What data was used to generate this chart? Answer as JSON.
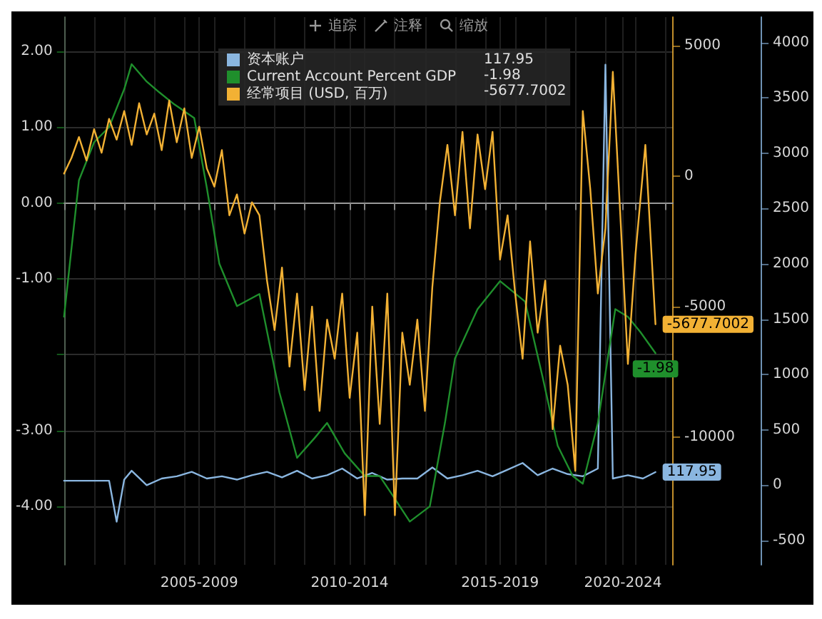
{
  "chart_data": {
    "type": "line",
    "annotations": [
      "追踪",
      "注释",
      "缩放"
    ],
    "series": [
      {
        "name": "资本账户",
        "color": "#8ab6e0",
        "axis": "y3",
        "x": [
          "2003-01",
          "2003-07",
          "2004-01",
          "2004-07",
          "2004-10",
          "2005-01",
          "2005-04",
          "2005-10",
          "2006-04",
          "2006-10",
          "2007-04",
          "2007-10",
          "2008-04",
          "2008-10",
          "2009-04",
          "2009-10",
          "2010-04",
          "2010-10",
          "2011-04",
          "2011-10",
          "2012-04",
          "2012-10",
          "2013-04",
          "2013-10",
          "2014-04",
          "2014-10",
          "2015-04",
          "2015-10",
          "2016-04",
          "2016-10",
          "2017-04",
          "2017-10",
          "2018-04",
          "2018-10",
          "2019-04",
          "2019-10",
          "2020-04",
          "2020-10",
          "2021-01",
          "2021-04",
          "2021-10",
          "2022-04",
          "2022-09"
        ],
        "values": [
          40,
          40,
          40,
          40,
          -330,
          50,
          130,
          0,
          60,
          80,
          120,
          60,
          80,
          50,
          90,
          120,
          70,
          130,
          60,
          90,
          150,
          60,
          110,
          50,
          60,
          60,
          160,
          60,
          90,
          130,
          80,
          140,
          200,
          90,
          150,
          100,
          80,
          150,
          3800,
          60,
          90,
          60,
          117.95
        ],
        "value_labels": [
          null,
          null,
          null,
          null,
          null,
          null,
          null,
          null,
          null,
          null,
          null,
          null,
          null,
          null,
          null,
          null,
          null,
          null,
          null,
          null,
          null,
          null,
          null,
          null,
          null,
          null,
          null,
          null,
          null,
          null,
          null,
          null,
          null,
          null,
          null,
          null,
          null,
          null,
          null,
          null,
          null,
          null,
          "117.95"
        ]
      },
      {
        "name": "Current Account Percent GDP",
        "color": "#1f8f2c",
        "axis": "y",
        "x": [
          "2003-01",
          "2003-07",
          "2004-01",
          "2004-07",
          "2005-01",
          "2005-04",
          "2005-10",
          "2006-03",
          "2006-09",
          "2007-01",
          "2007-05",
          "2007-10",
          "2008-03",
          "2008-10",
          "2009-07",
          "2010-03",
          "2010-10",
          "2011-05",
          "2011-10",
          "2012-05",
          "2013-01",
          "2013-07",
          "2014-01",
          "2014-07",
          "2015-03",
          "2015-09",
          "2016-01",
          "2016-10",
          "2017-07",
          "2018-05",
          "2018-12",
          "2019-06",
          "2019-12",
          "2020-04",
          "2020-10",
          "2021-05",
          "2021-10",
          "2022-03",
          "2022-09"
        ],
        "values": [
          -1.5,
          0.3,
          0.8,
          1.0,
          1.5,
          1.83,
          1.6,
          1.46,
          1.3,
          1.21,
          1.12,
          0.2,
          -0.8,
          -1.36,
          -1.2,
          -2.5,
          -3.36,
          -3.1,
          -2.9,
          -3.3,
          -3.6,
          -3.6,
          -3.9,
          -4.2,
          -4.0,
          -2.9,
          -2.05,
          -1.4,
          -1.03,
          -1.3,
          -2.3,
          -3.2,
          -3.6,
          -3.7,
          -2.9,
          -1.4,
          -1.5,
          -1.7,
          -1.98
        ],
        "value_labels": [
          null,
          null,
          null,
          null,
          null,
          null,
          null,
          null,
          null,
          null,
          null,
          null,
          null,
          null,
          null,
          null,
          null,
          null,
          null,
          null,
          null,
          null,
          null,
          null,
          null,
          null,
          null,
          null,
          null,
          null,
          null,
          null,
          null,
          null,
          null,
          null,
          null,
          null,
          "-1.98"
        ]
      },
      {
        "name": "经常项目 (USD, 百万)",
        "color": "#f2b134",
        "axis": "y2",
        "x": [
          "2003-01",
          "2003-04",
          "2003-07",
          "2003-10",
          "2004-01",
          "2004-04",
          "2004-07",
          "2004-10",
          "2005-01",
          "2005-04",
          "2005-07",
          "2005-10",
          "2006-01",
          "2006-04",
          "2006-07",
          "2006-10",
          "2007-01",
          "2007-04",
          "2007-07",
          "2007-10",
          "2008-01",
          "2008-04",
          "2008-07",
          "2008-10",
          "2009-01",
          "2009-04",
          "2009-07",
          "2009-10",
          "2010-01",
          "2010-04",
          "2010-07",
          "2010-10",
          "2011-01",
          "2011-04",
          "2011-07",
          "2011-10",
          "2012-01",
          "2012-04",
          "2012-07",
          "2012-10",
          "2013-01",
          "2013-04",
          "2013-07",
          "2013-10",
          "2014-01",
          "2014-04",
          "2014-07",
          "2014-10",
          "2015-01",
          "2015-04",
          "2015-07",
          "2015-10",
          "2016-01",
          "2016-04",
          "2016-07",
          "2016-10",
          "2017-01",
          "2017-04",
          "2017-07",
          "2017-10",
          "2018-01",
          "2018-04",
          "2018-07",
          "2018-10",
          "2019-01",
          "2019-04",
          "2019-07",
          "2019-10",
          "2020-01",
          "2020-04",
          "2020-07",
          "2020-10",
          "2021-01",
          "2021-04",
          "2021-07",
          "2021-10",
          "2022-01",
          "2022-05",
          "2022-09"
        ],
        "values": [
          100,
          700,
          1500,
          600,
          1800,
          900,
          2200,
          1400,
          2500,
          1200,
          2800,
          1600,
          2400,
          1000,
          2900,
          1300,
          2600,
          700,
          1900,
          300,
          -400,
          1000,
          -1500,
          -700,
          -2200,
          -1000,
          -1500,
          -4000,
          -5900,
          -3500,
          -7300,
          -4500,
          -8200,
          -5000,
          -9000,
          -5500,
          -7000,
          -4500,
          -8500,
          -6000,
          -13000,
          -5000,
          -9500,
          -4500,
          -13000,
          -6000,
          -8000,
          -5500,
          -9000,
          -4250,
          -1000,
          1200,
          -1500,
          1700,
          -2000,
          1600,
          -500,
          1700,
          -3200,
          -1500,
          -4500,
          -7000,
          -2500,
          -6000,
          -4000,
          -9700,
          -6500,
          -8000,
          -11300,
          2500,
          -500,
          -4500,
          -2000,
          4000,
          -1500,
          -7200,
          -3000,
          1200,
          -5677.7002
        ],
        "value_labels": [
          null,
          null,
          null,
          null,
          null,
          null,
          null,
          null,
          null,
          null,
          null,
          null,
          null,
          null,
          null,
          null,
          null,
          null,
          null,
          null,
          null,
          null,
          null,
          null,
          null,
          null,
          null,
          null,
          null,
          null,
          null,
          null,
          null,
          null,
          null,
          null,
          null,
          null,
          null,
          null,
          null,
          null,
          null,
          null,
          null,
          null,
          null,
          null,
          null,
          null,
          null,
          null,
          null,
          null,
          null,
          null,
          null,
          null,
          null,
          null,
          null,
          null,
          null,
          null,
          null,
          null,
          null,
          null,
          null,
          null,
          null,
          null,
          null,
          null,
          null,
          null,
          null,
          null,
          "-5677.7002"
        ]
      }
    ],
    "xlim": [
      "2003-01",
      "2023-04"
    ],
    "xticks": [
      {
        "value": "2003",
        "label": null
      },
      {
        "value": "2004",
        "label": null
      },
      {
        "value": "2005",
        "label": null
      },
      {
        "value": "2006",
        "label": null
      },
      {
        "value": "2007",
        "label": null
      },
      {
        "value": "2007-07",
        "label": "2005-2009"
      },
      {
        "value": "2008",
        "label": null
      },
      {
        "value": "2009",
        "label": null
      },
      {
        "value": "2010",
        "label": null
      },
      {
        "value": "2011",
        "label": null
      },
      {
        "value": "2012",
        "label": null
      },
      {
        "value": "2012-07",
        "label": "2010-2014"
      },
      {
        "value": "2013",
        "label": null
      },
      {
        "value": "2014",
        "label": null
      },
      {
        "value": "2015",
        "label": null
      },
      {
        "value": "2016",
        "label": null
      },
      {
        "value": "2017",
        "label": null
      },
      {
        "value": "2017-07",
        "label": "2015-2019"
      },
      {
        "value": "2018",
        "label": null
      },
      {
        "value": "2019",
        "label": null
      },
      {
        "value": "2020",
        "label": null
      },
      {
        "value": "2021",
        "label": null
      },
      {
        "value": "2021-08",
        "label": "2020-2024"
      },
      {
        "value": "2022",
        "label": null
      },
      {
        "value": "2023",
        "label": null
      }
    ],
    "ylim": [
      -4.77,
      2.45
    ],
    "yticks": [
      {
        "value": 2,
        "label": "2.00"
      },
      {
        "value": 1,
        "label": "1.00"
      },
      {
        "value": 0,
        "label": "0.00"
      },
      {
        "value": -1,
        "label": "-1.00"
      },
      {
        "value": -2,
        "label": null
      },
      {
        "value": -3,
        "label": "-3.00"
      },
      {
        "value": -4,
        "label": "-4.00"
      }
    ],
    "y2lim": [
      -14900,
      6100
    ],
    "y2ticks": [
      5000,
      0,
      -5000,
      -10000
    ],
    "y3lim": [
      -720,
      4230
    ],
    "y3ticks": [
      4000,
      3500,
      3000,
      2500,
      2000,
      1500,
      1000,
      500,
      0,
      -500
    ],
    "grid": true,
    "legend": "top left",
    "line_style": "solid",
    "marker": "none"
  }
}
